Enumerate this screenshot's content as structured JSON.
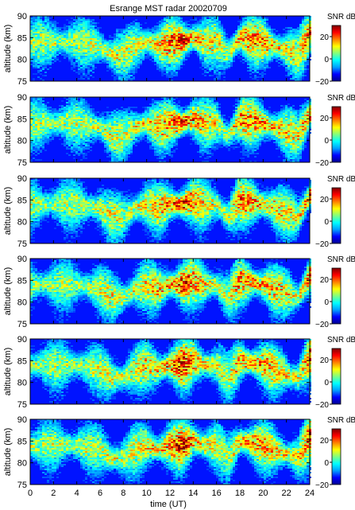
{
  "chart_data": {
    "type": "heatmap",
    "title": "Esrange MST radar 20020709",
    "xlabel": "time (UT)",
    "ylabel": "altitude (km)",
    "xlim": [
      0,
      24
    ],
    "ylim": [
      75,
      90
    ],
    "x_ticks": [
      "0",
      "2",
      "4",
      "6",
      "8",
      "10",
      "12",
      "14",
      "16",
      "18",
      "20",
      "22",
      "24"
    ],
    "y_ticks": [
      "75",
      "80",
      "85",
      "90"
    ],
    "colorbar": {
      "label": "SNR dB",
      "range": [
        -20,
        30
      ],
      "ticks": [
        "20",
        "0",
        "−20"
      ],
      "colormap": "jet",
      "colors": [
        "#00008f",
        "#0000ff",
        "#00a0ff",
        "#00ffff",
        "#80ff80",
        "#ffff00",
        "#ff8000",
        "#ff0000",
        "#800000"
      ]
    },
    "panel_count": 6,
    "echo_layer": {
      "description_points_time_h": [
        0,
        2,
        4,
        6,
        7,
        8,
        9,
        10,
        11,
        12,
        13,
        14,
        15,
        16,
        17,
        18,
        19,
        20,
        21,
        22,
        23,
        24
      ],
      "center_altitude_km": [
        84,
        84,
        84,
        83,
        81,
        81,
        83,
        84,
        83,
        84,
        84,
        85,
        84,
        84,
        81,
        85,
        84.5,
        84,
        83,
        82,
        81,
        86
      ],
      "peak_snr_db": [
        10,
        10,
        10,
        12,
        14,
        12,
        14,
        16,
        18,
        22,
        30,
        22,
        16,
        14,
        10,
        22,
        22,
        20,
        18,
        16,
        14,
        26
      ]
    },
    "grid": false,
    "legend": "none"
  }
}
